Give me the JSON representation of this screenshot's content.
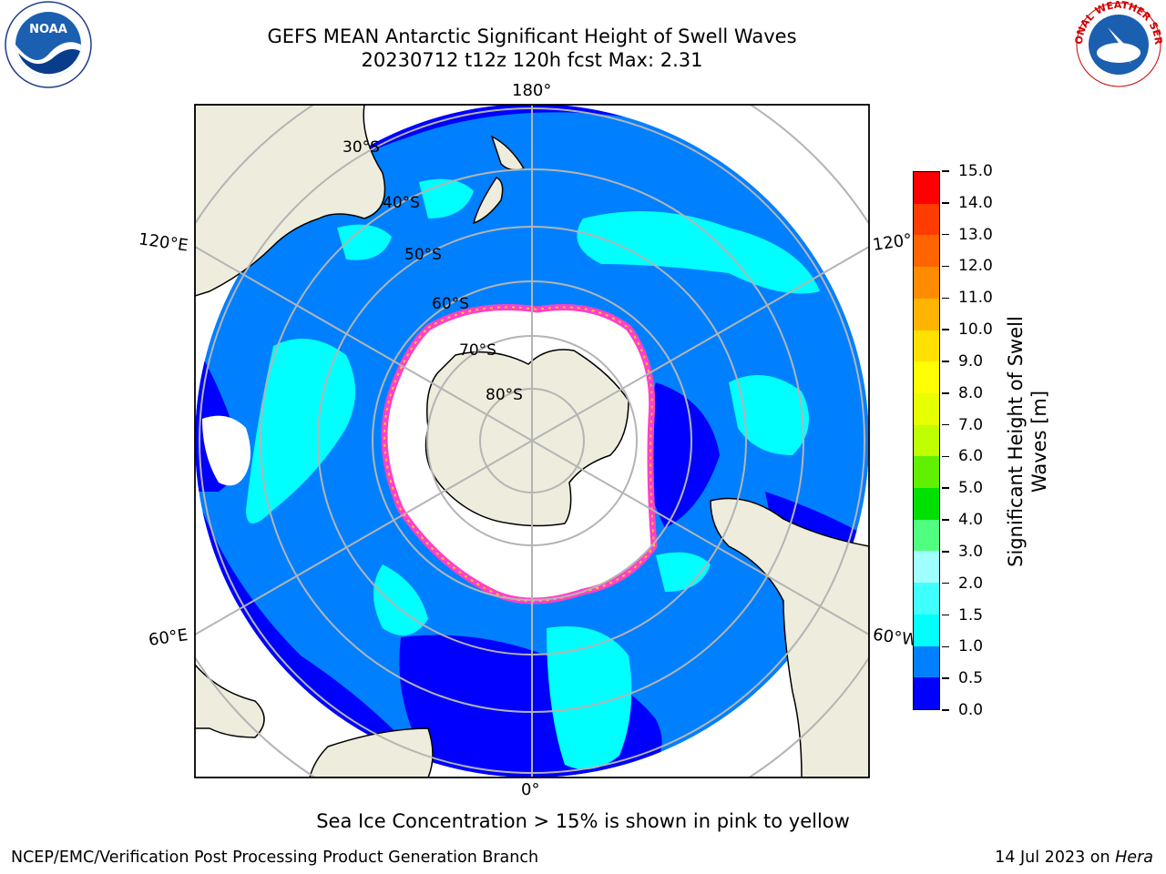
{
  "title": {
    "line1": "GEFS MEAN Antarctic Significant Height of Swell Waves",
    "line2": "20230712 t12z 120h fcst   Max: 2.31"
  },
  "logos": {
    "left": "noaa-logo",
    "right": "nws-logo"
  },
  "map": {
    "longitude_labels": {
      "top": "180°",
      "bottom": "0°",
      "left_upper": "120°E",
      "left_lower": "60°E",
      "right_upper": "120°",
      "right_lower": "60°W"
    },
    "latitude_labels": [
      "30°S",
      "40°S",
      "50°S",
      "60°S",
      "70°S",
      "80°S"
    ],
    "colors": {
      "land": "#eeecdc",
      "ocean_0_0.5": "#0000ff",
      "ocean_0.5_1.0": "#0080ff",
      "ocean_1.0_1.5": "#00ffff",
      "ice": "#ffffff",
      "ice_edge": "#ff40c8",
      "graticule": "#b4b4b4"
    }
  },
  "colorbar": {
    "title": "Significant Height of Swell Waves [m]",
    "tick_labels": [
      "0.0",
      "0.5",
      "1.0",
      "1.5",
      "2.0",
      "3.0",
      "4.0",
      "5.0",
      "6.0",
      "7.0",
      "8.0",
      "9.0",
      "10.0",
      "11.0",
      "12.0",
      "13.0",
      "14.0",
      "15.0"
    ],
    "colors": [
      "#0000ff",
      "#0080ff",
      "#00ffff",
      "#40ffff",
      "#a0ffff",
      "#50ff80",
      "#00e000",
      "#60f000",
      "#c0ff00",
      "#e8ff00",
      "#ffff00",
      "#ffe000",
      "#ffb400",
      "#ff8c00",
      "#ff6400",
      "#ff3c00",
      "#ff0000"
    ]
  },
  "footnote": "Sea Ice Concentration > 15% is shown in pink to yellow",
  "credit": "NCEP/EMC/Verification Post Processing Product Generation Branch",
  "date": {
    "text": "14 Jul 2023 on ",
    "machine": "Hera"
  }
}
